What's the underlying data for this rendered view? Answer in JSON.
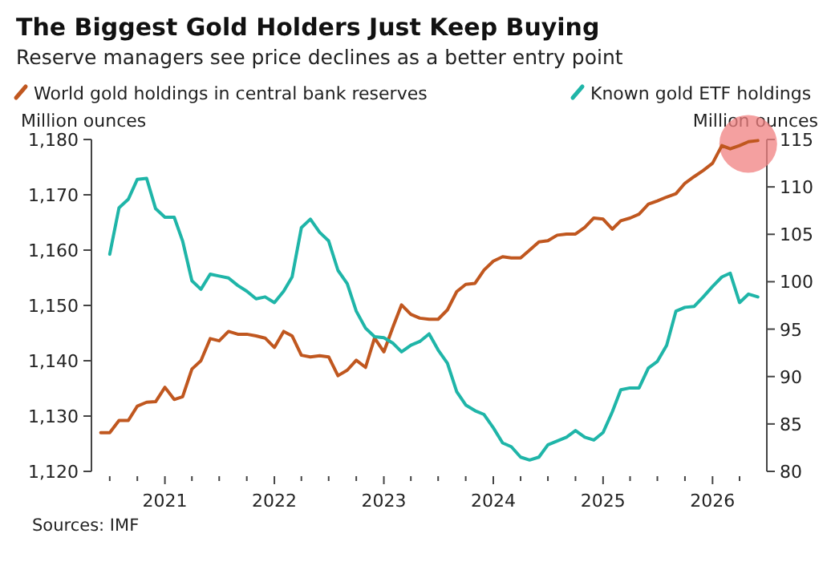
{
  "chart_data": {
    "type": "line",
    "title": "The Biggest Gold Holders Just Keep Buying",
    "subtitle": "Reserve managers see price declines as a better entry point",
    "ylabel": "Million ounces",
    "y2label": "Million ounces",
    "annotations": [
      "Sources: IMF"
    ],
    "x": [
      "2020-06",
      "2020-07",
      "2020-08",
      "2020-09",
      "2020-10",
      "2020-11",
      "2020-12",
      "2021-01",
      "2021-02",
      "2021-03",
      "2021-04",
      "2021-05",
      "2021-06",
      "2021-07",
      "2021-08",
      "2021-09",
      "2021-10",
      "2021-11",
      "2021-12",
      "2022-01",
      "2022-02",
      "2022-03",
      "2022-04",
      "2022-05",
      "2022-06",
      "2022-07",
      "2022-08",
      "2022-09",
      "2022-10",
      "2022-11",
      "2022-12",
      "2023-01",
      "2023-02",
      "2023-03",
      "2023-04",
      "2023-05",
      "2023-06",
      "2023-07",
      "2023-08",
      "2023-09",
      "2023-10",
      "2023-11",
      "2023-12",
      "2024-01",
      "2024-02",
      "2024-03",
      "2024-04",
      "2024-05",
      "2024-06",
      "2024-07",
      "2024-08",
      "2024-09",
      "2024-10",
      "2024-11",
      "2024-12",
      "2025-01",
      "2025-02",
      "2025-03",
      "2025-04",
      "2025-05",
      "2025-06",
      "2025-07",
      "2025-08",
      "2025-09",
      "2025-10",
      "2025-11",
      "2025-12",
      "2026-01",
      "2026-02",
      "2026-03",
      "2026-04",
      "2026-05",
      "2026-06"
    ],
    "series": [
      {
        "name": "World gold holdings in central bank reserves",
        "color": "#c0571f",
        "values": [
          1127.0,
          1127.0,
          1129.2,
          1129.2,
          1131.8,
          1132.5,
          1132.6,
          1135.2,
          1133.0,
          1133.5,
          1138.5,
          1140.0,
          1144.0,
          1143.6,
          1145.3,
          1144.8,
          1144.8,
          1144.5,
          1144.1,
          1142.4,
          1145.3,
          1144.5,
          1141.0,
          1140.7,
          1140.9,
          1140.7,
          1137.3,
          1138.3,
          1140.1,
          1138.8,
          1144.1,
          1141.6,
          1146.2,
          1150.1,
          1148.4,
          1147.7,
          1147.5,
          1147.5,
          1149.2,
          1152.5,
          1153.8,
          1154.0,
          1156.4,
          1158.0,
          1158.8,
          1158.6,
          1158.6,
          1160.0,
          1161.5,
          1161.7,
          1162.7,
          1162.9,
          1162.9,
          1164.1,
          1165.8,
          1165.6,
          1163.8,
          1165.3,
          1165.8,
          1166.5,
          1168.3,
          1168.9,
          1169.6,
          1170.2,
          1172.1,
          1173.3,
          1174.4,
          1175.7,
          1178.9,
          1178.3,
          1178.9,
          1179.6,
          1179.8
        ]
      },
      {
        "name": "Known gold ETF holdings",
        "color": "#1fb5a8",
        "axis": "y2",
        "values": [
          null,
          102.9,
          107.8,
          108.7,
          110.8,
          110.9,
          107.7,
          106.8,
          106.8,
          104.3,
          100.1,
          99.2,
          100.8,
          100.6,
          100.4,
          99.6,
          99.0,
          98.2,
          98.4,
          97.8,
          99.0,
          100.5,
          105.7,
          106.6,
          105.2,
          104.3,
          101.2,
          99.8,
          96.9,
          95.1,
          94.2,
          94.1,
          93.5,
          92.6,
          93.3,
          93.7,
          94.5,
          92.8,
          91.4,
          88.4,
          87.0,
          86.4,
          86.0,
          84.6,
          83.0,
          82.6,
          81.5,
          81.2,
          81.5,
          82.8,
          83.2,
          83.6,
          84.3,
          83.6,
          83.3,
          84.1,
          86.3,
          88.6,
          88.8,
          88.8,
          90.9,
          91.6,
          93.3,
          96.9,
          97.3,
          97.4,
          98.4,
          99.5,
          100.5,
          100.9,
          97.8,
          98.7,
          98.4
        ]
      }
    ],
    "xlim": [
      "2020-05-01",
      "2026-07-01"
    ],
    "xticks": [
      {
        "value": "2020-07",
        "label": null
      },
      {
        "value": "2020-10",
        "label": null
      },
      "2021",
      {
        "value": "2021-04",
        "label": null
      },
      {
        "value": "2021-07",
        "label": null
      },
      {
        "value": "2021-10",
        "label": null
      },
      "2022",
      {
        "value": "2022-04",
        "label": null
      },
      {
        "value": "2022-07",
        "label": null
      },
      {
        "value": "2022-10",
        "label": null
      },
      "2023",
      {
        "value": "2023-04",
        "label": null
      },
      {
        "value": "2023-07",
        "label": null
      },
      {
        "value": "2023-10",
        "label": null
      },
      "2024",
      {
        "value": "2024-04",
        "label": null
      },
      {
        "value": "2024-07",
        "label": null
      },
      {
        "value": "2024-10",
        "label": null
      },
      "2025",
      {
        "value": "2025-04",
        "label": null
      },
      {
        "value": "2025-07",
        "label": null
      },
      {
        "value": "2025-10",
        "label": null
      },
      "2026",
      {
        "value": "2026-04",
        "label": null
      }
    ],
    "ylim": [
      1120,
      1180
    ],
    "yticks": [
      {
        "value": 1120,
        "label": "1,120"
      },
      {
        "value": 1130,
        "label": "1,130"
      },
      {
        "value": 1140,
        "label": "1,140"
      },
      {
        "value": 1150,
        "label": "1,150"
      },
      {
        "value": 1160,
        "label": "1,160"
      },
      {
        "value": 1170,
        "label": "1,170"
      },
      {
        "value": 1180,
        "label": "1,180"
      }
    ],
    "y2lim": [
      80,
      115
    ],
    "y2ticks": [
      80,
      85,
      90,
      95,
      100,
      105,
      110,
      115
    ],
    "legend": "top",
    "grid": false,
    "marker": "none",
    "line_style": "solid"
  }
}
